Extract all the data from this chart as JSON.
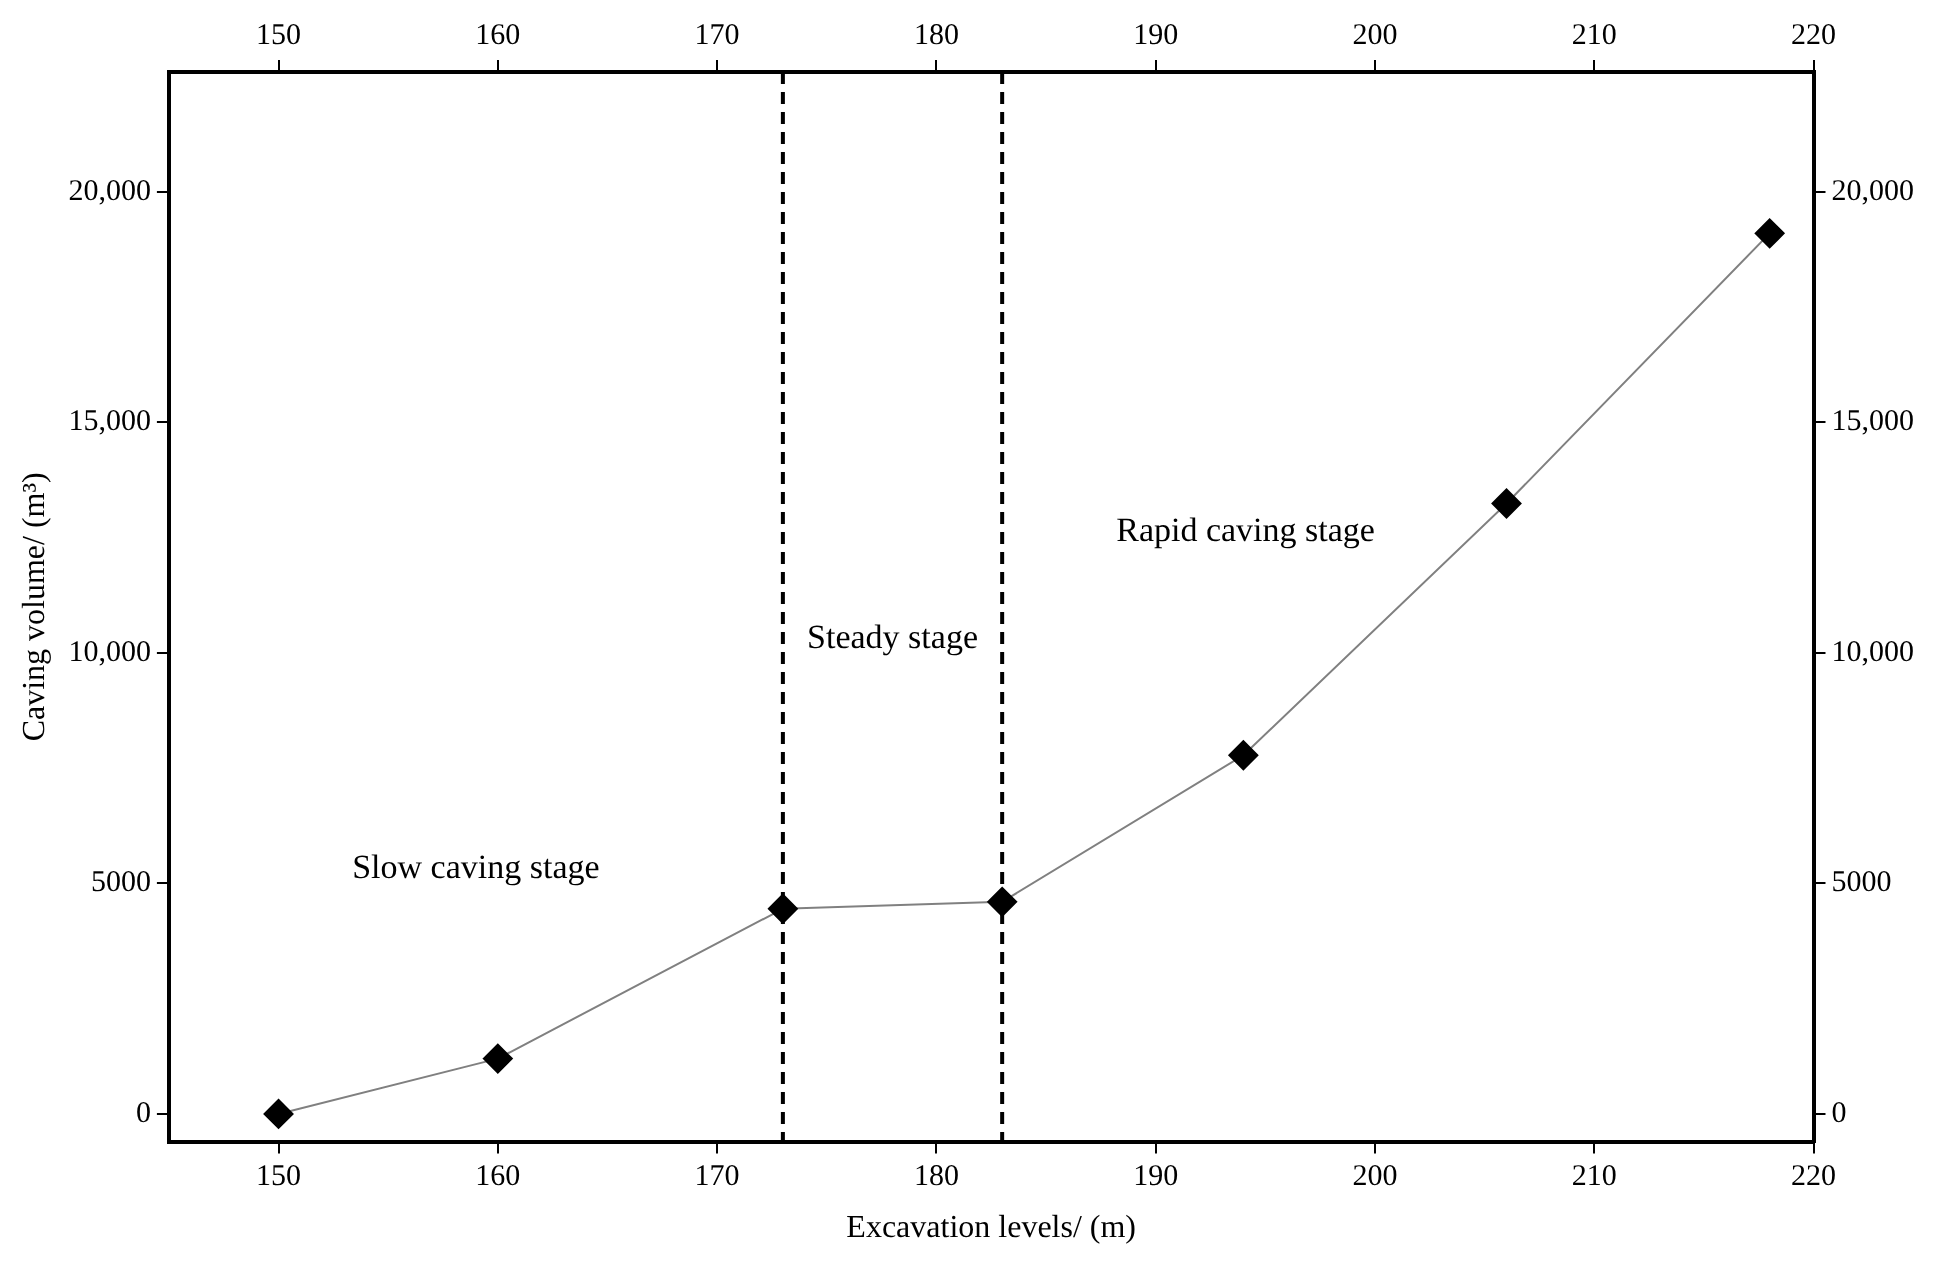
{
  "chart_data": {
    "type": "line",
    "xlabel": "Excavation levels/ (m)",
    "ylabel": "Caving volume/ (m³)",
    "x": [
      150,
      160,
      173,
      183,
      194,
      206,
      218
    ],
    "series": [
      {
        "color": "#000000",
        "values": [
          0,
          1200,
          4450,
          4600,
          7780,
          13240,
          19100
        ]
      }
    ],
    "xlim": [
      145,
      220
    ],
    "xticks": [
      150,
      160,
      170,
      180,
      190,
      200,
      210,
      220
    ],
    "x2lim": [
      145,
      220
    ],
    "x2ticks": [
      150,
      160,
      170,
      180,
      190,
      200,
      210,
      220
    ],
    "ylim": [
      -600,
      22600
    ],
    "yticks": [
      {
        "value": 0,
        "label": "0"
      },
      {
        "value": 5000,
        "label": "5000"
      },
      {
        "value": 10000,
        "label": "10,000"
      },
      {
        "value": 15000,
        "label": "15,000"
      },
      {
        "value": 20000,
        "label": "20,000"
      }
    ],
    "y2lim": [
      -600,
      22600
    ],
    "y2ticks": [
      {
        "value": 0,
        "label": "0"
      },
      {
        "value": 5000,
        "label": "5000"
      },
      {
        "value": 10000,
        "label": "10,000"
      },
      {
        "value": 15000,
        "label": "15,000"
      },
      {
        "value": 20000,
        "label": "20,000"
      }
    ],
    "ref_lines": [
      {
        "axis": "x",
        "value": 173,
        "line_style": "dashed",
        "color": "#000000"
      },
      {
        "axis": "x",
        "value": 183,
        "line_style": "dashed",
        "color": "#000000"
      }
    ],
    "annotations": [
      "Slow caving stage",
      "Steady stage",
      "Rapid caving stage"
    ],
    "marker": "diamond",
    "line_style": "solid",
    "grid": false,
    "legend": false
  }
}
